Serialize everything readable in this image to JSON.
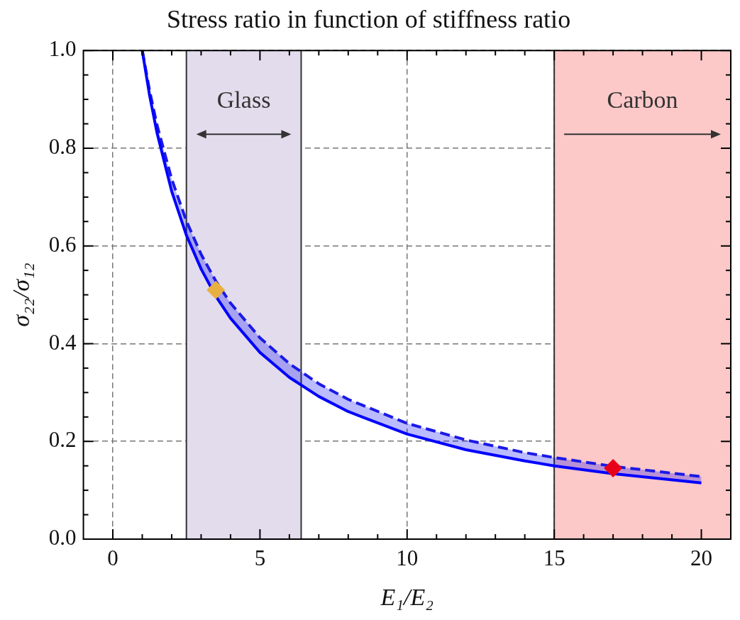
{
  "chart_data": {
    "type": "line",
    "title": "Stress ratio in function of stiffness ratio",
    "xlabel": "E₁/E₂",
    "ylabel": "σ₂₂/σ₁₂",
    "x": [
      1,
      1.25,
      1.5,
      2,
      2.5,
      3,
      3.5,
      4,
      5,
      6,
      7,
      8,
      10,
      12,
      14,
      15,
      17,
      20
    ],
    "series": [
      {
        "color": "#0000ff",
        "line_style": "solid",
        "marker": "none",
        "values": [
          1.0,
          0.908,
          0.832,
          0.712,
          0.622,
          0.553,
          0.497,
          0.452,
          0.382,
          0.331,
          0.292,
          0.261,
          0.215,
          0.183,
          0.16,
          0.15,
          0.134,
          0.115
        ],
        "lower": [
          1.0,
          0.908,
          0.832,
          0.712,
          0.622,
          0.553,
          0.497,
          0.452,
          0.382,
          0.331,
          0.292,
          0.261,
          0.215,
          0.183,
          0.16,
          0.15,
          0.134,
          0.115
        ],
        "upper": [
          1.0,
          0.918,
          0.848,
          0.737,
          0.651,
          0.583,
          0.528,
          0.483,
          0.412,
          0.359,
          0.318,
          0.286,
          0.237,
          0.203,
          0.177,
          0.167,
          0.149,
          0.128
        ]
      },
      {
        "color": "#1a1ae6",
        "line_style": "dashed",
        "marker": "none",
        "values": [
          1.0,
          0.918,
          0.848,
          0.737,
          0.651,
          0.583,
          0.528,
          0.483,
          0.412,
          0.359,
          0.318,
          0.286,
          0.237,
          0.203,
          0.177,
          0.167,
          0.149,
          0.128
        ]
      },
      {
        "type": "scatter",
        "color": "#e8b040",
        "marker": "diamond",
        "x": [
          3.5
        ],
        "values": [
          0.51
        ]
      },
      {
        "type": "scatter",
        "color": "#e8001a",
        "marker": "diamond",
        "x": [
          17
        ],
        "values": [
          0.145
        ]
      }
    ],
    "bands": [
      {
        "axis": "x",
        "from": 2.5,
        "to": 6.4,
        "label": "Glass",
        "color": "#e3dcec"
      },
      {
        "axis": "x",
        "from": 15,
        "to": 21,
        "label": "Carbon",
        "color": "#fcc8c8"
      }
    ],
    "xlim": [
      -1,
      21
    ],
    "xticks": [
      0,
      5,
      10,
      15,
      20
    ],
    "ylim": [
      0,
      1
    ],
    "yticks": [
      {
        "value": 0,
        "label": "0.0"
      },
      {
        "value": 0.2,
        "label": "0.2"
      },
      {
        "value": 0.4,
        "label": "0.4"
      },
      {
        "value": 0.6,
        "label": "0.6"
      },
      {
        "value": 0.8,
        "label": "0.8"
      },
      {
        "value": 1,
        "label": "1.0"
      }
    ],
    "grid": true,
    "legend": false
  }
}
